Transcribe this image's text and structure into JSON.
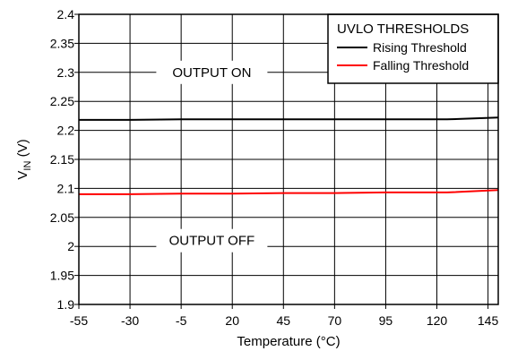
{
  "chart_data": {
    "type": "line",
    "title": "",
    "xlabel": "Temperature (°C)",
    "ylabel": "V_IN (V)",
    "ylabel_main": "V",
    "ylabel_sub": "IN",
    "ylabel_unit": " (V)",
    "xlim": [
      -55,
      150
    ],
    "ylim": [
      1.9,
      2.4
    ],
    "x_ticks": [
      -55,
      -30,
      -5,
      20,
      45,
      70,
      95,
      120,
      145
    ],
    "x_tick_labels": [
      "-55",
      "-30",
      "-5",
      "20",
      "45",
      "70",
      "95",
      "120",
      "145"
    ],
    "y_ticks": [
      1.9,
      1.95,
      2.0,
      2.05,
      2.1,
      2.15,
      2.2,
      2.25,
      2.3,
      2.35,
      2.4
    ],
    "y_tick_labels": [
      "1.9",
      "1.95",
      "2",
      "2.05",
      "2.1",
      "2.15",
      "2.2",
      "2.25",
      "2.3",
      "2.35",
      "2.4"
    ],
    "grid": true,
    "legend": {
      "title": "UVLO THRESHOLDS",
      "position": "top-right"
    },
    "series": [
      {
        "name": "Rising Threshold",
        "color": "#000000",
        "x": [
          -55,
          -30,
          -5,
          20,
          45,
          70,
          95,
          125,
          150
        ],
        "y": [
          2.218,
          2.218,
          2.219,
          2.219,
          2.219,
          2.219,
          2.219,
          2.219,
          2.222
        ]
      },
      {
        "name": "Falling Threshold",
        "color": "#ff0000",
        "x": [
          -55,
          -30,
          -5,
          20,
          45,
          70,
          95,
          125,
          150
        ],
        "y": [
          2.09,
          2.09,
          2.091,
          2.091,
          2.092,
          2.092,
          2.093,
          2.093,
          2.097
        ]
      }
    ],
    "annotations": [
      {
        "text": "OUTPUT ON",
        "x": 10,
        "y": 2.3
      },
      {
        "text": "OUTPUT OFF",
        "x": 10,
        "y": 2.01
      }
    ]
  }
}
